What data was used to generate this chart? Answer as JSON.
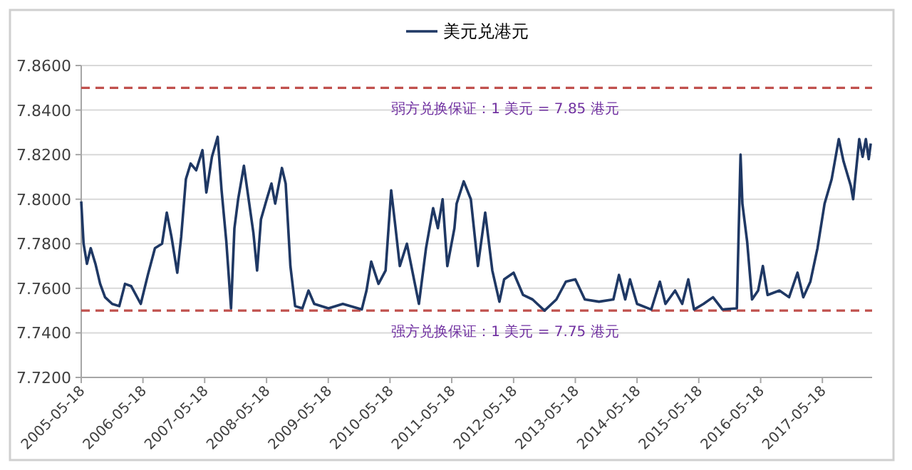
{
  "chart_data": {
    "type": "line",
    "legend": "top",
    "grid": "y",
    "marker": "none",
    "line_style": "solid",
    "xlim": [
      "2005-05-18",
      "2018-03-08"
    ],
    "ylim": [
      7.72,
      7.86
    ],
    "xticks": [
      "2005-05-18",
      "2006-05-18",
      "2007-05-18",
      "2008-05-18",
      "2009-05-18",
      "2010-05-18",
      "2011-05-18",
      "2012-05-18",
      "2013-05-18",
      "2014-05-18",
      "2015-05-18",
      "2016-05-18",
      "2017-05-18"
    ],
    "yticks": [
      {
        "value": 7.72,
        "label": "7.7200"
      },
      {
        "value": 7.74,
        "label": "7.7400"
      },
      {
        "value": 7.76,
        "label": "7.7600"
      },
      {
        "value": 7.78,
        "label": "7.7800"
      },
      {
        "value": 7.8,
        "label": "7.8000"
      },
      {
        "value": 7.82,
        "label": "7.8200"
      },
      {
        "value": 7.84,
        "label": "7.8400"
      },
      {
        "value": 7.86,
        "label": "7.8600"
      }
    ],
    "ref_lines": [
      {
        "axis": "y",
        "value": 7.85,
        "label": "弱方兑换保证：1 美元 = 7.85 港元",
        "color": "#c0504d",
        "line_style": "dashed"
      },
      {
        "axis": "y",
        "value": 7.75,
        "label": "强方兑换保证：1 美元 = 7.75 港元",
        "color": "#c0504d",
        "line_style": "dashed"
      }
    ],
    "series": [
      {
        "name": "美元兑港元",
        "color": "#1f3864",
        "x": [
          "2005-05-18",
          "2005-06-01",
          "2005-06-21",
          "2005-07-13",
          "2005-08-10",
          "2005-09-07",
          "2005-10-06",
          "2005-11-17",
          "2005-12-29",
          "2006-02-01",
          "2006-03-09",
          "2006-05-05",
          "2006-06-16",
          "2006-07-28",
          "2006-09-08",
          "2006-10-06",
          "2006-11-03",
          "2006-12-07",
          "2006-12-30",
          "2007-01-27",
          "2007-02-24",
          "2007-03-29",
          "2007-05-05",
          "2007-05-28",
          "2007-06-30",
          "2007-08-03",
          "2007-08-26",
          "2007-09-23",
          "2007-10-21",
          "2007-11-10",
          "2007-12-02",
          "2008-01-05",
          "2008-02-02",
          "2008-03-01",
          "2008-03-23",
          "2008-04-15",
          "2008-05-19",
          "2008-06-16",
          "2008-07-08",
          "2008-08-17",
          "2008-09-08",
          "2008-10-06",
          "2008-11-03",
          "2008-12-16",
          "2009-01-21",
          "2009-02-24",
          "2009-05-19",
          "2009-08-12",
          "2009-12-02",
          "2009-12-30",
          "2010-01-27",
          "2010-03-11",
          "2010-04-22",
          "2010-05-25",
          "2010-06-17",
          "2010-07-15",
          "2010-08-26",
          "2010-10-07",
          "2010-11-05",
          "2010-12-17",
          "2011-01-28",
          "2011-02-25",
          "2011-03-25",
          "2011-04-22",
          "2011-06-03",
          "2011-06-16",
          "2011-07-28",
          "2011-09-08",
          "2011-10-20",
          "2011-12-02",
          "2012-01-13",
          "2012-02-24",
          "2012-03-23",
          "2012-05-18",
          "2012-07-13",
          "2012-09-07",
          "2012-11-17",
          "2013-01-26",
          "2013-03-23",
          "2013-05-18",
          "2013-07-13",
          "2013-10-05",
          "2013-12-29",
          "2014-01-31",
          "2014-03-09",
          "2014-04-06",
          "2014-05-18",
          "2014-08-10",
          "2014-09-30",
          "2014-11-02",
          "2014-12-29",
          "2015-02-09",
          "2015-03-17",
          "2015-04-20",
          "2015-06-15",
          "2015-08-10",
          "2015-10-05",
          "2015-12-29",
          "2016-01-20",
          "2016-01-31",
          "2016-02-28",
          "2016-03-28",
          "2016-05-03",
          "2016-05-31",
          "2016-06-28",
          "2016-09-06",
          "2016-11-02",
          "2016-12-22",
          "2017-01-25",
          "2017-03-08",
          "2017-04-19",
          "2017-05-31",
          "2017-07-12",
          "2017-08-23",
          "2017-09-20",
          "2017-11-02",
          "2017-11-16",
          "2017-12-22",
          "2018-01-11",
          "2018-01-30",
          "2018-02-16",
          "2018-02-28"
        ],
        "values": [
          7.799,
          7.78,
          7.771,
          7.778,
          7.771,
          7.762,
          7.756,
          7.753,
          7.752,
          7.762,
          7.761,
          7.753,
          7.766,
          7.778,
          7.78,
          7.794,
          7.783,
          7.767,
          7.783,
          7.809,
          7.816,
          7.813,
          7.822,
          7.803,
          7.819,
          7.828,
          7.804,
          7.781,
          7.751,
          7.787,
          7.8,
          7.815,
          7.8,
          7.785,
          7.768,
          7.791,
          7.8,
          7.807,
          7.798,
          7.814,
          7.807,
          7.77,
          7.752,
          7.751,
          7.759,
          7.753,
          7.751,
          7.753,
          7.7505,
          7.759,
          7.772,
          7.762,
          7.768,
          7.804,
          7.789,
          7.77,
          7.78,
          7.764,
          7.753,
          7.778,
          7.796,
          7.787,
          7.8,
          7.77,
          7.787,
          7.798,
          7.808,
          7.8,
          7.77,
          7.794,
          7.768,
          7.754,
          7.764,
          7.767,
          7.757,
          7.755,
          7.75,
          7.755,
          7.763,
          7.764,
          7.755,
          7.754,
          7.755,
          7.766,
          7.755,
          7.764,
          7.753,
          7.7505,
          7.763,
          7.753,
          7.759,
          7.753,
          7.764,
          7.7505,
          7.753,
          7.756,
          7.7505,
          7.751,
          7.82,
          7.798,
          7.781,
          7.755,
          7.759,
          7.77,
          7.757,
          7.759,
          7.756,
          7.767,
          7.756,
          7.763,
          7.778,
          7.798,
          7.809,
          7.827,
          7.817,
          7.806,
          7.8,
          7.827,
          7.819,
          7.827,
          7.818,
          7.825
        ]
      }
    ]
  }
}
